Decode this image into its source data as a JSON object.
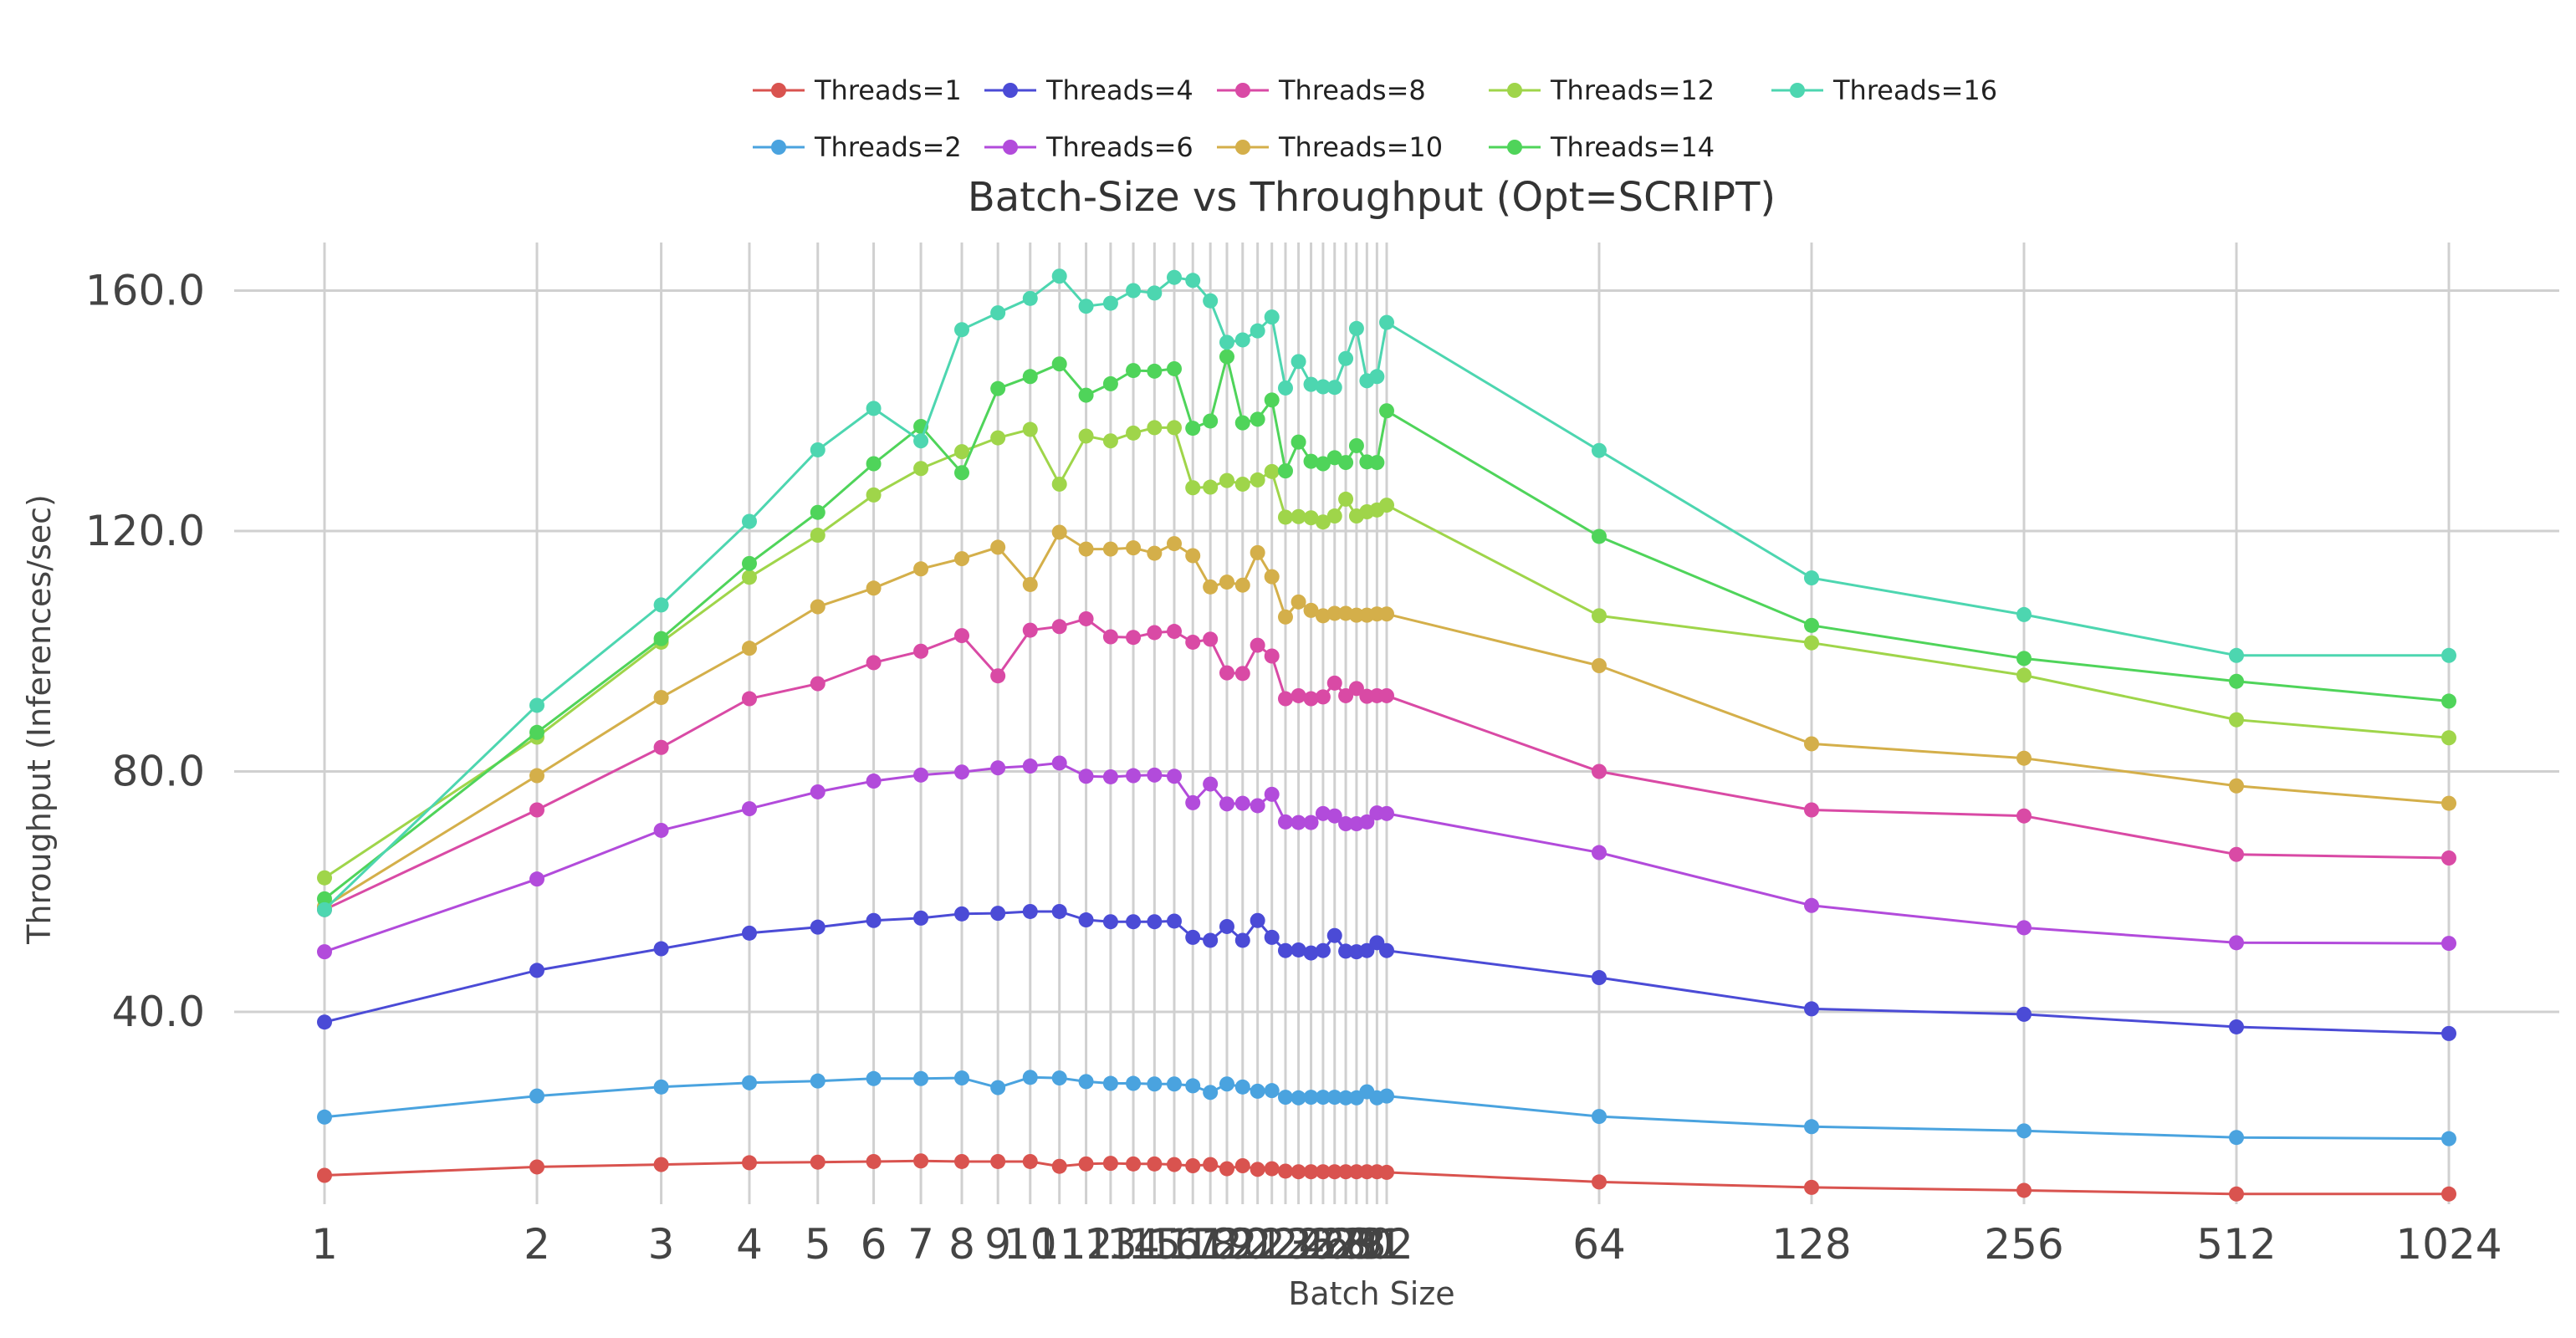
{
  "chart_data": {
    "type": "line",
    "title": "Batch-Size vs Throughput (Opt=SCRIPT)",
    "xlabel": "Batch Size",
    "ylabel": "Throughput (Inferences/sec)",
    "x_scale": "log2",
    "xlim": [
      1,
      1024
    ],
    "ylim": [
      8,
      168
    ],
    "yticks": [
      "40.0",
      "80.0",
      "120.0",
      "160.0"
    ],
    "grid": true,
    "legend_position": "top-center",
    "x": [
      1,
      2,
      3,
      4,
      5,
      6,
      7,
      8,
      9,
      10,
      11,
      12,
      13,
      14,
      15,
      16,
      17,
      18,
      19,
      20,
      21,
      22,
      23,
      24,
      25,
      26,
      27,
      28,
      29,
      30,
      31,
      32,
      64,
      128,
      256,
      512,
      1024
    ],
    "xticks": [
      "1",
      "2",
      "3",
      "4",
      "5",
      "6",
      "7",
      "8",
      "9",
      "10",
      "11",
      "12",
      "13",
      "14",
      "15",
      "16",
      "17",
      "18",
      "19",
      "20",
      "21",
      "22",
      "23",
      "24",
      "25",
      "26",
      "27",
      "28",
      "29",
      "30",
      "31",
      "32",
      "64",
      "128",
      "256",
      "512",
      "1024"
    ],
    "series": [
      {
        "name": "Threads=1",
        "color": "#d9534f",
        "values": [
          12.8,
          14.2,
          14.6,
          14.9,
          15.0,
          15.1,
          15.2,
          15.1,
          15.1,
          15.1,
          14.3,
          14.7,
          14.8,
          14.7,
          14.7,
          14.6,
          14.4,
          14.6,
          13.9,
          14.4,
          13.8,
          13.9,
          13.5,
          13.4,
          13.4,
          13.4,
          13.4,
          13.4,
          13.4,
          13.4,
          13.4,
          13.3,
          11.7,
          10.8,
          10.3,
          9.7,
          9.7
        ]
      },
      {
        "name": "Threads=2",
        "color": "#4aa3df",
        "values": [
          22.5,
          26.0,
          27.5,
          28.2,
          28.5,
          28.9,
          28.9,
          29.0,
          27.4,
          29.1,
          29.0,
          28.4,
          28.1,
          28.1,
          28.0,
          28.0,
          27.7,
          26.6,
          28.0,
          27.5,
          26.8,
          26.9,
          25.8,
          25.7,
          25.8,
          25.8,
          25.8,
          25.7,
          25.7,
          26.7,
          25.7,
          26.0,
          22.6,
          20.9,
          20.2,
          19.1,
          18.9
        ]
      },
      {
        "name": "Threads=4",
        "color": "#4b4bd6",
        "values": [
          38.3,
          46.9,
          50.5,
          53.1,
          54.1,
          55.2,
          55.6,
          56.3,
          56.4,
          56.7,
          56.7,
          55.3,
          55.0,
          55.0,
          55.0,
          55.1,
          52.4,
          51.9,
          54.2,
          51.9,
          55.2,
          52.4,
          50.2,
          50.3,
          49.8,
          50.2,
          52.7,
          50.1,
          50.0,
          50.2,
          51.5,
          50.2,
          45.7,
          40.5,
          39.6,
          37.5,
          36.4
        ]
      },
      {
        "name": "Threads=6",
        "color": "#b24bdb",
        "values": [
          50.0,
          62.1,
          70.2,
          73.8,
          76.6,
          78.4,
          79.4,
          79.9,
          80.6,
          80.9,
          81.4,
          79.2,
          79.1,
          79.3,
          79.4,
          79.2,
          74.8,
          77.9,
          74.6,
          74.7,
          74.3,
          76.2,
          71.6,
          71.5,
          71.5,
          73.0,
          72.6,
          71.3,
          71.3,
          71.6,
          73.1,
          73.0,
          66.5,
          57.7,
          54.0,
          51.5,
          51.4
        ]
      },
      {
        "name": "Threads=8",
        "color": "#d94aa5",
        "values": [
          57.0,
          73.6,
          84.0,
          92.1,
          94.6,
          98.1,
          100.0,
          102.6,
          95.9,
          103.5,
          104.1,
          105.4,
          102.4,
          102.3,
          103.1,
          103.3,
          101.5,
          102.0,
          96.4,
          96.3,
          101.0,
          99.2,
          92.1,
          92.6,
          92.1,
          92.4,
          94.7,
          92.6,
          93.8,
          92.5,
          92.6,
          92.6,
          80.0,
          73.6,
          72.6,
          66.2,
          65.6
        ]
      },
      {
        "name": "Threads=10",
        "color": "#d4af4a",
        "values": [
          57.5,
          79.3,
          92.3,
          100.5,
          107.4,
          110.5,
          113.7,
          115.4,
          117.3,
          111.1,
          119.8,
          117.0,
          117.0,
          117.2,
          116.3,
          117.9,
          115.9,
          110.7,
          111.5,
          111.0,
          116.4,
          112.4,
          105.7,
          108.2,
          106.8,
          105.9,
          106.3,
          106.3,
          106.0,
          106.0,
          106.2,
          106.2,
          97.6,
          84.6,
          82.2,
          77.6,
          74.7
        ]
      },
      {
        "name": "Threads=12",
        "color": "#9fd54a",
        "values": [
          62.3,
          85.7,
          101.5,
          112.3,
          119.3,
          126.0,
          130.4,
          133.2,
          135.5,
          136.9,
          127.8,
          135.8,
          135.0,
          136.3,
          137.2,
          137.2,
          127.2,
          127.3,
          128.4,
          127.8,
          128.5,
          129.9,
          122.3,
          122.4,
          122.2,
          121.5,
          122.5,
          125.3,
          122.5,
          123.2,
          123.5,
          124.3,
          105.9,
          101.4,
          96.0,
          88.6,
          85.6
        ]
      },
      {
        "name": "Threads=14",
        "color": "#4fd45a",
        "values": [
          58.8,
          86.5,
          102.1,
          114.6,
          123.1,
          131.2,
          137.4,
          129.7,
          143.7,
          145.7,
          147.8,
          142.6,
          144.5,
          146.7,
          146.6,
          147.0,
          137.1,
          138.3,
          149.0,
          138.0,
          138.6,
          141.8,
          130.0,
          134.8,
          131.6,
          131.2,
          132.2,
          131.4,
          134.2,
          131.5,
          131.4,
          140.0,
          119.1,
          104.3,
          98.8,
          95.0,
          91.7
        ]
      },
      {
        "name": "Threads=16",
        "color": "#4dd6b0",
        "values": [
          57.0,
          91.0,
          107.7,
          121.6,
          133.5,
          140.4,
          135.0,
          153.5,
          156.3,
          158.7,
          162.4,
          157.4,
          157.9,
          160.0,
          159.6,
          162.2,
          161.7,
          158.3,
          151.4,
          151.8,
          153.3,
          155.6,
          143.8,
          148.2,
          144.4,
          144.0,
          143.9,
          148.7,
          153.7,
          145.0,
          145.7,
          154.7,
          133.4,
          112.2,
          106.1,
          99.3,
          99.3
        ]
      }
    ]
  }
}
